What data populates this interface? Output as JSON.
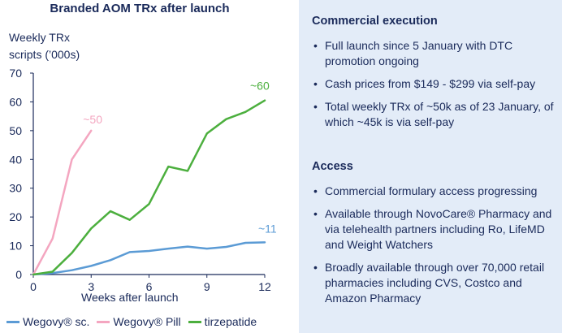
{
  "chart_data": {
    "type": "line",
    "title": "Branded AOM TRx after launch",
    "ylabel_lines": [
      "Weekly TRx",
      "scripts (’000s)"
    ],
    "xlabel": "Weeks after launch",
    "xlim": [
      0,
      12
    ],
    "ylim": [
      0,
      70
    ],
    "xticks": [
      0,
      3,
      6,
      9,
      12
    ],
    "yticks": [
      0,
      10,
      20,
      30,
      40,
      50,
      60,
      70
    ],
    "series": [
      {
        "name": "Wegovy® sc.",
        "color": "#5b9bd5",
        "x": [
          0,
          1,
          2,
          3,
          4,
          5,
          6,
          7,
          8,
          9,
          10,
          11,
          12
        ],
        "values": [
          0,
          0.5,
          1.5,
          3,
          5,
          7.8,
          8.2,
          9,
          9.7,
          9,
          9.6,
          11,
          11.2
        ],
        "end_label": "~11"
      },
      {
        "name": "Wegovy® Pill",
        "color": "#f4a6c0",
        "x": [
          0,
          1,
          2,
          3
        ],
        "values": [
          0,
          12.5,
          40,
          50
        ],
        "end_label": "~50"
      },
      {
        "name": "tirzepatide",
        "color": "#4caf3e",
        "x": [
          0,
          1,
          2,
          3,
          4,
          5,
          6,
          7,
          8,
          9,
          10,
          11,
          12
        ],
        "values": [
          0,
          1,
          7.5,
          16,
          22,
          19,
          24.5,
          37.5,
          36,
          49,
          54,
          56.5,
          60.5
        ],
        "end_label": "~60"
      }
    ]
  },
  "legend": {
    "items": [
      {
        "label": "Wegovy® sc.",
        "color": "#5b9bd5"
      },
      {
        "label": "Wegovy® Pill",
        "color": "#f4a6c0"
      },
      {
        "label": "tirzepatide",
        "color": "#4caf3e"
      }
    ]
  },
  "panel": {
    "sections": [
      {
        "title": "Commercial execution",
        "bullets": [
          "Full launch since 5 January with DTC promotion ongoing",
          "Cash prices from $149 - $299 via self-pay",
          "Total weekly TRx of ~50k as of 23 January, of which ~45k is via self-pay"
        ]
      },
      {
        "title": "Access",
        "bullets": [
          "Commercial formulary access progressing",
          "Available through NovoCare® Pharmacy and via telehealth partners including Ro, LifeMD and Weight Watchers",
          "Broadly available through over 70,000 retail pharmacies including CVS, Costco and Amazon Pharmacy"
        ]
      }
    ]
  }
}
